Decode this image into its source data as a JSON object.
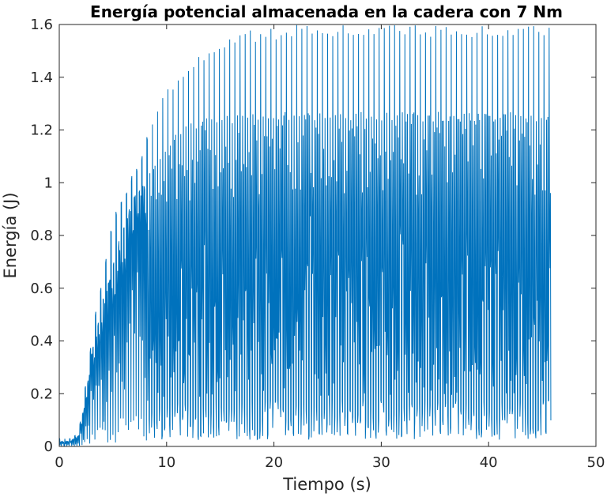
{
  "chart_data": {
    "type": "line",
    "title": "Energía potencial almacenada en la cadera con 7 Nm",
    "xlabel": "Tiempo (s)",
    "ylabel": "Energía (J)",
    "xlim": [
      0,
      50
    ],
    "ylim": [
      0,
      1.6
    ],
    "x_ticks": [
      0,
      10,
      20,
      30,
      40,
      50
    ],
    "x_tick_labels": [
      "0",
      "10",
      "20",
      "30",
      "40",
      "50"
    ],
    "y_ticks": [
      0,
      0.2,
      0.4,
      0.6,
      0.8,
      1.0,
      1.2,
      1.4,
      1.6
    ],
    "y_tick_labels": [
      "0",
      "0.2",
      "0.4",
      "0.6",
      "0.8",
      "1",
      "1.2",
      "1.4",
      "1.6"
    ],
    "grid": false,
    "box": true,
    "series_color": "#0072BD",
    "series": [
      {
        "description_of_envelope": "oscillating signal, approximate peak envelope",
        "x": [
          0,
          1.0,
          1.8,
          2.5,
          3.0,
          3.5,
          4.0,
          5.0,
          6.0,
          7.0,
          8.0,
          9.0,
          10.0,
          11.0,
          12.0,
          13.0,
          14.0,
          16.0,
          18.0,
          20.0,
          22.0,
          25.0,
          30.0,
          35.0,
          40.0,
          45.8
        ],
        "peak": [
          0.03,
          0.03,
          0.05,
          0.25,
          0.4,
          0.55,
          0.62,
          0.88,
          0.95,
          1.05,
          1.15,
          1.3,
          1.35,
          1.4,
          1.45,
          1.5,
          1.52,
          1.56,
          1.58,
          1.59,
          1.6,
          1.6,
          1.6,
          1.6,
          1.6,
          1.6
        ],
        "upper_band": [
          0.02,
          0.02,
          0.04,
          0.2,
          0.35,
          0.45,
          0.55,
          0.7,
          0.85,
          0.95,
          1.0,
          1.1,
          1.15,
          1.2,
          1.22,
          1.24,
          1.25,
          1.26,
          1.27,
          1.27,
          1.27,
          1.27,
          1.27,
          1.27,
          1.27,
          1.27
        ]
      }
    ]
  }
}
